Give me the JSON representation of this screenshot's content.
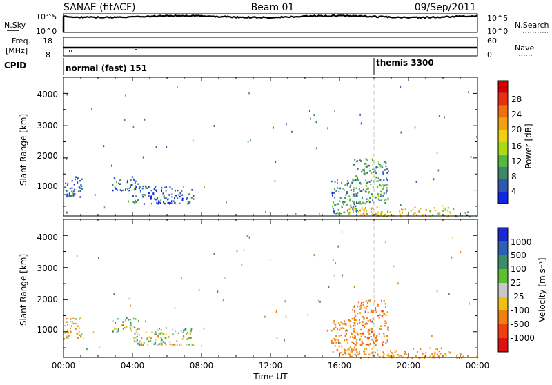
{
  "header": {
    "station": "SANAE (fitACF)",
    "beam": "Beam 01",
    "date": "09/Sep/2011"
  },
  "aux_panels": {
    "nsky_label": "N.Sky",
    "nsky_ticks": [
      "10^5",
      "10^0"
    ],
    "nsearch_label": "N.Search",
    "nsearch_ticks": [
      "10^5",
      "10^0"
    ],
    "freq_label_line1": "Freq.",
    "freq_label_line2": "[MHz]",
    "freq_ticks": [
      "18",
      "8"
    ],
    "nave_label": "Nave",
    "nave_ticks": [
      "60",
      "0"
    ],
    "cpid_label": "CPID",
    "cpid_segments": [
      "normal (fast) 151",
      "themis 3300"
    ]
  },
  "axes": {
    "xlabel": "Time UT",
    "x_ticks": [
      "00:00",
      "04:00",
      "08:00",
      "12:00",
      "16:00",
      "20:00",
      "00:00"
    ],
    "ylabel": "Slant Range [km]",
    "y_ticks": [
      "1000",
      "2000",
      "3000",
      "4000"
    ]
  },
  "power_colorbar": {
    "label": "Power [dB]",
    "ticks": [
      "4",
      "8",
      "12",
      "16",
      "20",
      "24",
      "28"
    ],
    "colors": [
      "#1028e6",
      "#2e58b0",
      "#3c8868",
      "#56b83c",
      "#a8dc10",
      "#f0d010",
      "#f0a010",
      "#f07010",
      "#e83010",
      "#d00000"
    ]
  },
  "velocity_colorbar": {
    "label": "Velocity [m s⁻¹]",
    "ticks": [
      "1000",
      "500",
      "100",
      "25",
      "-25",
      "-100",
      "-500",
      "-1000"
    ],
    "colors": [
      "#1a2ad0",
      "#2c60b0",
      "#3e8c6a",
      "#5cc030",
      "#c8c8c8",
      "#f0c010",
      "#f08010",
      "#f04010",
      "#e01010"
    ]
  },
  "chart_data": [
    {
      "type": "heatmap",
      "title": "",
      "quantity": "Power",
      "units": "dB",
      "xlabel": "Time UT",
      "ylabel": "Slant Range [km]",
      "xlim_hours": [
        0,
        24
      ],
      "ylim_km": [
        200,
        4500
      ],
      "color_range": [
        0,
        30
      ],
      "scatter_regions": [
        {
          "t_start": 0.0,
          "t_end": 1.2,
          "r_min": 800,
          "r_max": 1450,
          "value": 5
        },
        {
          "t_start": 2.8,
          "t_end": 4.4,
          "r_min": 1000,
          "r_max": 1450,
          "value": 5
        },
        {
          "t_start": 4.0,
          "t_end": 7.5,
          "r_min": 600,
          "r_max": 1150,
          "value": 4
        },
        {
          "t_start": 15.5,
          "t_end": 17.0,
          "r_min": 300,
          "r_max": 1400,
          "value": 7
        },
        {
          "t_start": 16.7,
          "t_end": 18.8,
          "r_min": 600,
          "r_max": 2000,
          "value": 8
        },
        {
          "t_start": 16.5,
          "t_end": 21.0,
          "r_min": 200,
          "r_max": 500,
          "value": 18
        },
        {
          "t_start": 21.2,
          "t_end": 22.6,
          "r_min": 200,
          "r_max": 550,
          "value": 14
        },
        {
          "t_start": 22.6,
          "t_end": 24.0,
          "r_min": 200,
          "r_max": 350,
          "value": 6
        }
      ]
    },
    {
      "type": "heatmap",
      "title": "",
      "quantity": "Velocity",
      "units": "m s-1",
      "xlabel": "Time UT",
      "ylabel": "Slant Range [km]",
      "xlim_hours": [
        0,
        24
      ],
      "ylim_km": [
        200,
        4500
      ],
      "color_range": [
        -1000,
        1000
      ],
      "scatter_regions": [
        {
          "t_start": 0.0,
          "t_end": 1.2,
          "r_min": 800,
          "r_max": 1450,
          "value": -120
        },
        {
          "t_start": 2.8,
          "t_end": 4.4,
          "r_min": 1000,
          "r_max": 1450,
          "value": 80
        },
        {
          "t_start": 4.0,
          "t_end": 7.5,
          "r_min": 600,
          "r_max": 1150,
          "value": 0
        },
        {
          "t_start": 15.5,
          "t_end": 17.0,
          "r_min": 300,
          "r_max": 1400,
          "value": -300
        },
        {
          "t_start": 16.7,
          "t_end": 18.8,
          "r_min": 600,
          "r_max": 2000,
          "value": -400
        },
        {
          "t_start": 16.5,
          "t_end": 21.0,
          "r_min": 200,
          "r_max": 500,
          "value": -200
        },
        {
          "t_start": 21.2,
          "t_end": 22.6,
          "r_min": 200,
          "r_max": 550,
          "value": -150
        },
        {
          "t_start": 22.6,
          "t_end": 24.0,
          "r_min": 200,
          "r_max": 350,
          "value": -80
        }
      ]
    }
  ]
}
